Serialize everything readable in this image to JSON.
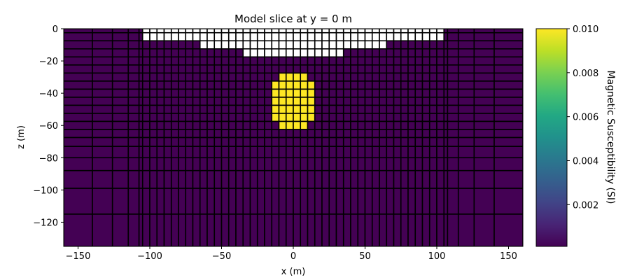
{
  "chart_data": {
    "type": "heatmap",
    "title": "Model slice at y = 0 m",
    "xlabel": "x (m)",
    "ylabel": "z (m)",
    "xlim": [
      -160,
      160
    ],
    "ylim": [
      -135,
      0
    ],
    "xticks": [
      -150,
      -100,
      -50,
      0,
      50,
      100,
      150
    ],
    "yticks": [
      0,
      -20,
      -40,
      -60,
      -80,
      -100,
      -120
    ],
    "mesh": {
      "core_cell_size": 5,
      "core_x_range": [
        -105,
        105
      ],
      "x_padding_left": [
        -160,
        -140,
        -126,
        -115,
        -107.5
      ],
      "x_padding_right": [
        107.5,
        115,
        126,
        140,
        160
      ],
      "z_core_range": [
        -67.5,
        -2.5
      ],
      "z_padding": [
        -67.5,
        -73,
        -80,
        -88,
        -99,
        -115,
        -135
      ],
      "z_top_cell": [
        -2.5,
        0
      ]
    },
    "background_susceptibility": 0,
    "anomaly": {
      "value": 0.01,
      "cells_x_by_row": [
        {
          "z": [
            -35,
            -30
          ],
          "x": [
            -10,
            10
          ]
        },
        {
          "z": [
            -55,
            -35
          ],
          "x": [
            -15,
            15
          ]
        },
        {
          "z": [
            -60,
            -55
          ],
          "x": [
            -10,
            10
          ]
        }
      ]
    },
    "air_cells": [
      {
        "z": [
          -5,
          0
        ],
        "x": [
          -105,
          105
        ]
      },
      {
        "z": [
          -10,
          -5
        ],
        "x": [
          -65,
          65
        ]
      },
      {
        "z": [
          -15,
          -10
        ],
        "x": [
          -35,
          35
        ]
      }
    ],
    "colorbar": {
      "label": "Magnetic Susceptibility (SI)",
      "colormap": "viridis",
      "range": [
        0.0001,
        0.01
      ],
      "ticks": [
        0.002,
        0.004,
        0.006,
        0.008,
        0.01
      ],
      "tick_labels": [
        "0.002",
        "0.004",
        "0.006",
        "0.008",
        "0.010"
      ]
    },
    "colors": {
      "background_cell": "#440154",
      "anomaly_cell": "#fde725",
      "air_cell": "#ffffff",
      "cell_edge": "#000000"
    },
    "grid": false,
    "legend": "none"
  }
}
